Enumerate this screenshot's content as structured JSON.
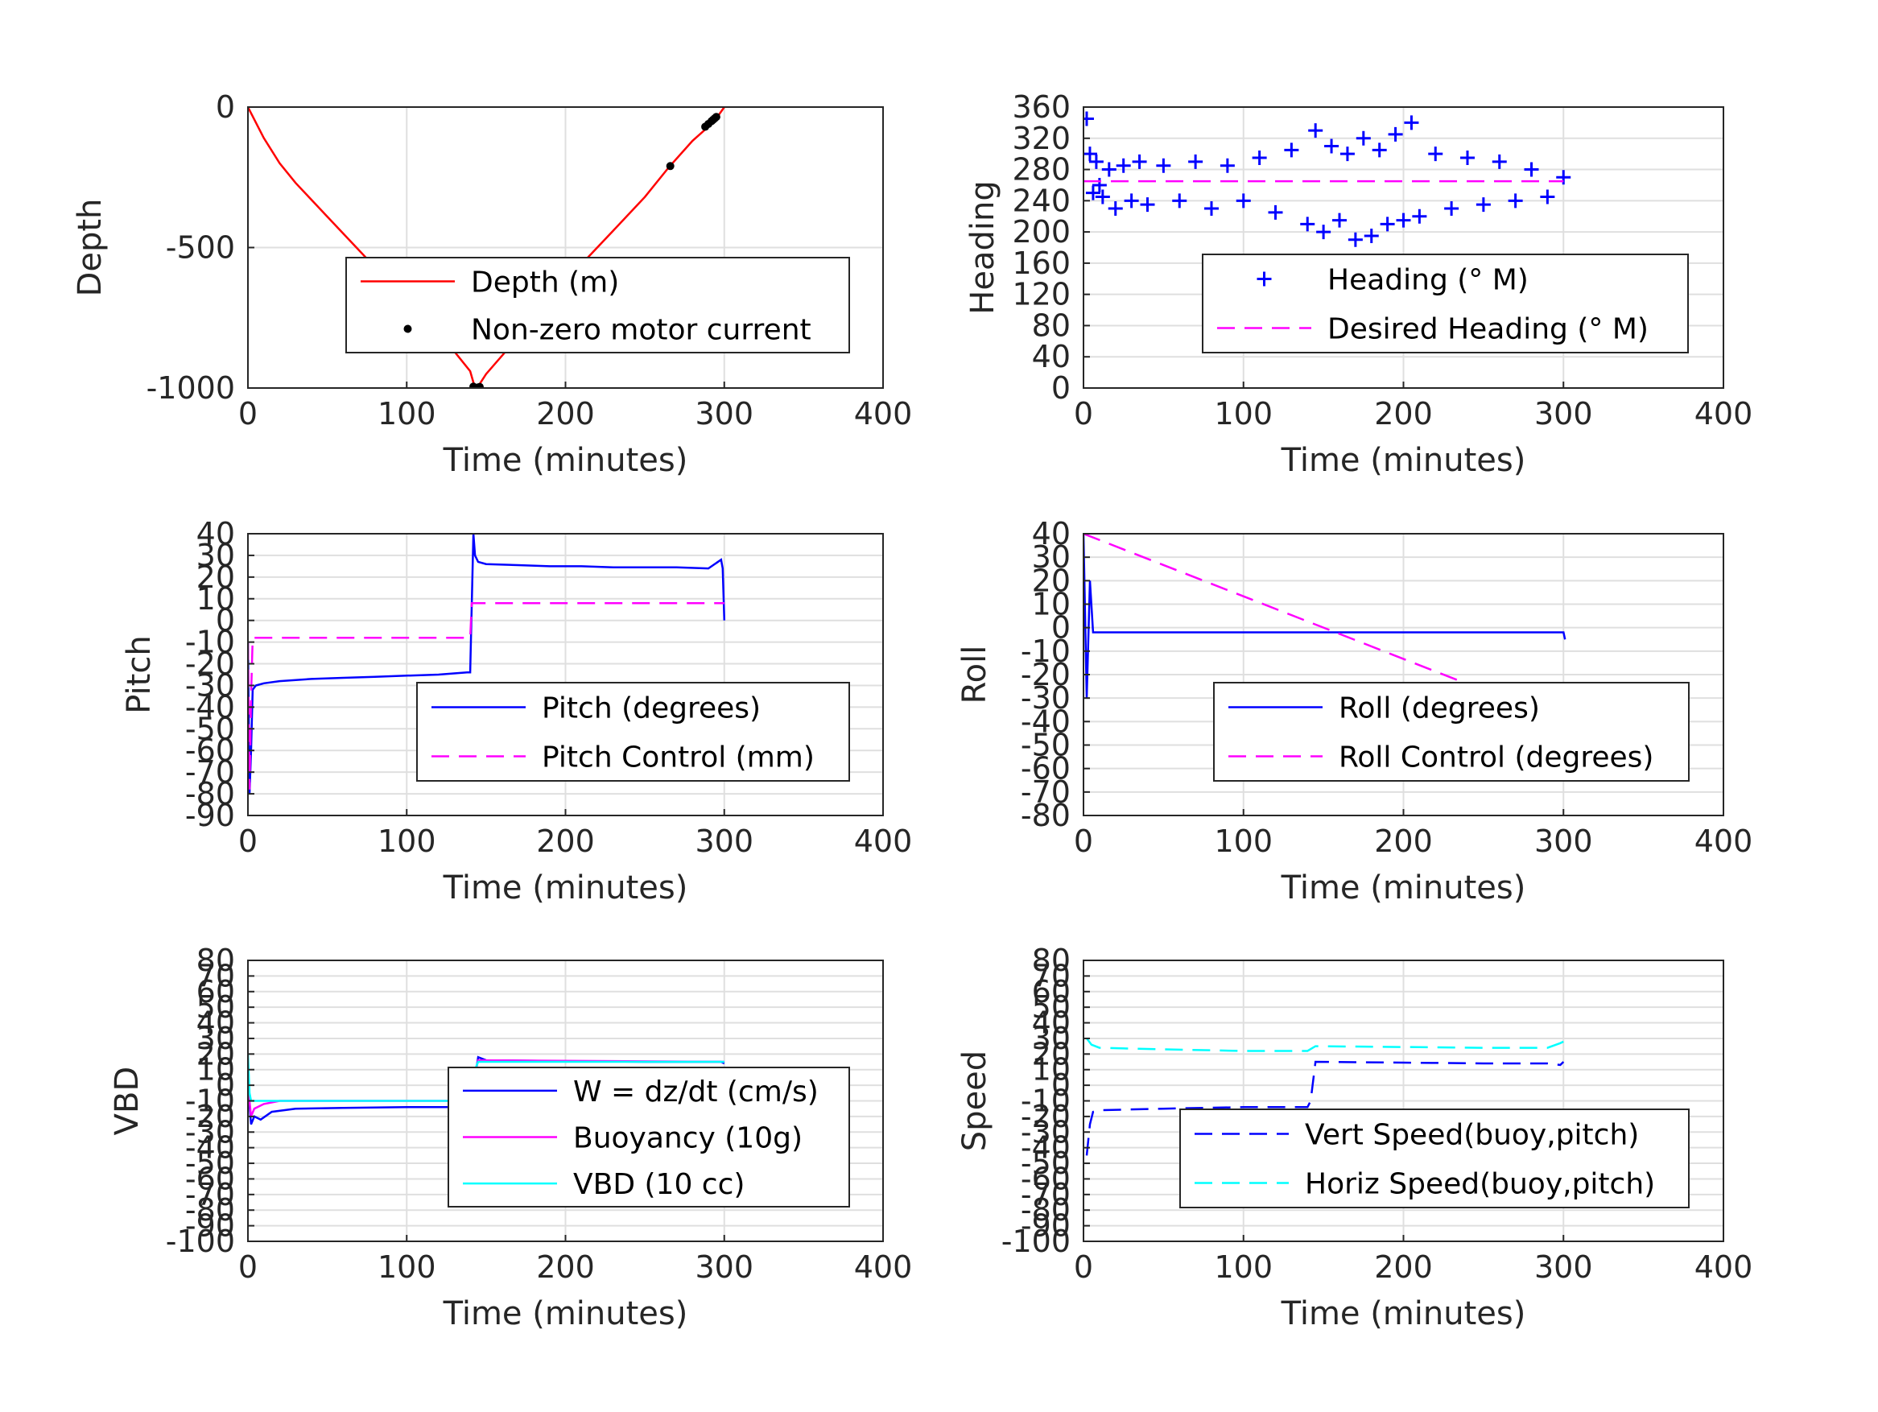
{
  "figure": {
    "background": "#ffffff"
  },
  "chart_data": [
    {
      "id": "depth",
      "type": "line",
      "xlabel": "Time (minutes)",
      "ylabel": "Depth",
      "xlim": [
        0,
        400
      ],
      "ylim": [
        -1000,
        0
      ],
      "xticks": [
        0,
        100,
        200,
        300,
        400
      ],
      "yticks": [
        -1000,
        -500,
        0
      ],
      "legend_position": "center",
      "series": [
        {
          "name": "Depth (m)",
          "color": "#ff0000",
          "style": "solid",
          "marker": "none",
          "x": [
            0,
            10,
            20,
            30,
            50,
            70,
            90,
            110,
            130,
            140,
            143,
            146,
            150,
            170,
            190,
            210,
            230,
            250,
            265,
            280,
            290,
            295,
            300
          ],
          "y": [
            0,
            -110,
            -200,
            -270,
            -390,
            -510,
            -630,
            -750,
            -870,
            -940,
            -1000,
            -985,
            -950,
            -820,
            -690,
            -560,
            -440,
            -320,
            -215,
            -120,
            -70,
            -40,
            0
          ]
        },
        {
          "name": "Non-zero motor current",
          "color": "#000000",
          "style": "none",
          "marker": "dot",
          "x": [
            142,
            144,
            145,
            146,
            266,
            288,
            290,
            292,
            293,
            294,
            295
          ],
          "y": [
            -995,
            -1000,
            -998,
            -996,
            -210,
            -70,
            -60,
            -50,
            -45,
            -40,
            -35
          ]
        }
      ]
    },
    {
      "id": "heading",
      "type": "scatter",
      "xlabel": "Time (minutes)",
      "ylabel": "Heading",
      "xlim": [
        0,
        400
      ],
      "ylim": [
        0,
        360
      ],
      "xticks": [
        0,
        100,
        200,
        300,
        400
      ],
      "yticks": [
        0,
        40,
        80,
        120,
        160,
        200,
        240,
        280,
        320,
        360
      ],
      "legend_position": "center-right",
      "series": [
        {
          "name": "Heading (° M)",
          "color": "#0000ff",
          "style": "none",
          "marker": "plus",
          "x": [
            2,
            4,
            6,
            8,
            10,
            12,
            16,
            20,
            25,
            30,
            35,
            40,
            50,
            60,
            70,
            80,
            90,
            100,
            110,
            120,
            130,
            140,
            145,
            150,
            155,
            160,
            165,
            170,
            175,
            180,
            185,
            190,
            195,
            200,
            205,
            210,
            220,
            230,
            240,
            250,
            260,
            270,
            280,
            290,
            300
          ],
          "y": [
            345,
            300,
            250,
            290,
            260,
            245,
            280,
            230,
            285,
            240,
            290,
            235,
            285,
            240,
            290,
            230,
            285,
            240,
            295,
            225,
            305,
            210,
            330,
            200,
            310,
            215,
            300,
            190,
            320,
            195,
            305,
            210,
            325,
            215,
            340,
            220,
            300,
            230,
            295,
            235,
            290,
            240,
            280,
            245,
            270
          ]
        },
        {
          "name": "Desired Heading (° M)",
          "color": "#ff00ff",
          "style": "dashed",
          "marker": "none",
          "x": [
            0,
            300
          ],
          "y": [
            265,
            265
          ]
        }
      ]
    },
    {
      "id": "pitch",
      "type": "line",
      "xlabel": "Time (minutes)",
      "ylabel": "Pitch",
      "xlim": [
        0,
        400
      ],
      "ylim": [
        -90,
        40
      ],
      "xticks": [
        0,
        100,
        200,
        300,
        400
      ],
      "yticks": [
        -90,
        -80,
        -70,
        -60,
        -50,
        -40,
        -30,
        -20,
        -10,
        0,
        10,
        20,
        30,
        40
      ],
      "legend_position": "bottom-right",
      "series": [
        {
          "name": "Pitch (degrees)",
          "color": "#0000ff",
          "style": "solid",
          "marker": "none",
          "x": [
            0,
            1,
            2,
            3,
            5,
            10,
            20,
            40,
            60,
            80,
            100,
            120,
            138,
            140,
            142,
            143,
            145,
            150,
            170,
            190,
            210,
            230,
            250,
            270,
            290,
            298,
            299,
            300
          ],
          "y": [
            -10,
            -80,
            -60,
            -32,
            -30,
            -29,
            -28,
            -27,
            -26.5,
            -26,
            -25.5,
            -25,
            -24,
            -24,
            40,
            30,
            27,
            26,
            25.5,
            25,
            25,
            24.5,
            24.5,
            24.5,
            24,
            28,
            24,
            0
          ]
        },
        {
          "name": "Pitch Control (mm)",
          "color": "#ff00ff",
          "style": "dashed",
          "marker": "none",
          "x": [
            0,
            1,
            2,
            3,
            140,
            141,
            300
          ],
          "y": [
            -10,
            -78,
            -35,
            -8,
            -8,
            8,
            8
          ]
        }
      ]
    },
    {
      "id": "roll",
      "type": "line",
      "xlabel": "Time (minutes)",
      "ylabel": "Roll",
      "xlim": [
        0,
        400
      ],
      "ylim": [
        -80,
        40
      ],
      "xticks": [
        0,
        100,
        200,
        300,
        400
      ],
      "yticks": [
        -80,
        -70,
        -60,
        -50,
        -40,
        -30,
        -20,
        -10,
        0,
        10,
        20,
        30,
        40
      ],
      "legend_position": "bottom-right",
      "series": [
        {
          "name": "Roll (degrees)",
          "color": "#0000ff",
          "style": "solid",
          "marker": "none",
          "x": [
            0,
            2,
            4,
            6,
            10,
            20,
            300,
            301
          ],
          "y": [
            40,
            -30,
            20,
            -2,
            -2,
            -2,
            -2,
            -5
          ]
        },
        {
          "name": "Roll Control (degrees)",
          "color": "#ff00ff",
          "style": "dashed",
          "marker": "none",
          "x": [
            0,
            300
          ],
          "y": [
            40,
            -40
          ]
        }
      ]
    },
    {
      "id": "vbd",
      "type": "line",
      "xlabel": "Time (minutes)",
      "ylabel": "VBD",
      "xlim": [
        0,
        400
      ],
      "ylim": [
        -100,
        80
      ],
      "xticks": [
        0,
        100,
        200,
        300,
        400
      ],
      "yticks": [
        -100,
        -90,
        -80,
        -70,
        -60,
        -50,
        -40,
        -30,
        -20,
        -10,
        0,
        10,
        20,
        30,
        40,
        50,
        60,
        70,
        80
      ],
      "legend_position": "bottom-right",
      "series": [
        {
          "name": "W = dz/dt (cm/s)",
          "color": "#0000ff",
          "style": "solid",
          "marker": "none",
          "x": [
            0,
            2,
            4,
            8,
            15,
            30,
            60,
            100,
            138,
            140,
            143,
            145,
            150,
            200,
            250,
            290,
            298,
            300
          ],
          "y": [
            0,
            -25,
            -20,
            -22,
            -17,
            -15,
            -14.5,
            -14,
            -14,
            -12,
            5,
            18,
            16,
            15.5,
            15,
            15,
            15,
            14
          ]
        },
        {
          "name": "Buoyancy (10g)",
          "color": "#ff00ff",
          "style": "solid",
          "marker": "none",
          "x": [
            0,
            2,
            4,
            10,
            20,
            140,
            143,
            145,
            300
          ],
          "y": [
            0,
            -20,
            -15,
            -12,
            -10,
            -10,
            8,
            16,
            15
          ]
        },
        {
          "name": "VBD (10 cc)",
          "color": "#00ffff",
          "style": "solid",
          "marker": "none",
          "x": [
            0,
            1,
            2,
            5,
            140,
            143,
            145,
            300
          ],
          "y": [
            20,
            -5,
            -10,
            -10,
            -10,
            10,
            15,
            15
          ]
        }
      ]
    },
    {
      "id": "speed",
      "type": "line",
      "xlabel": "Time (minutes)",
      "ylabel": "Speed",
      "xlim": [
        0,
        400
      ],
      "ylim": [
        -100,
        80
      ],
      "xticks": [
        0,
        100,
        200,
        300,
        400
      ],
      "yticks": [
        -100,
        -90,
        -80,
        -70,
        -60,
        -50,
        -40,
        -30,
        -20,
        -10,
        0,
        10,
        20,
        30,
        40,
        50,
        60,
        70,
        80
      ],
      "legend_position": "bottom-right",
      "series": [
        {
          "name": "Vert Speed(buoy,pitch)",
          "color": "#0000ff",
          "style": "dashed",
          "marker": "none",
          "x": [
            2,
            4,
            6,
            10,
            50,
            100,
            140,
            142,
            145,
            200,
            250,
            290,
            298,
            300
          ],
          "y": [
            -45,
            -25,
            -17,
            -16,
            -15,
            -14,
            -14,
            -10,
            15,
            14.5,
            14,
            14,
            13,
            15
          ]
        },
        {
          "name": "Horiz Speed(buoy,pitch)",
          "color": "#00ffff",
          "style": "dashed",
          "marker": "none",
          "x": [
            2,
            5,
            10,
            50,
            100,
            140,
            145,
            200,
            250,
            290,
            298,
            300
          ],
          "y": [
            30,
            26,
            24,
            23,
            22,
            22,
            25,
            24.5,
            24,
            24,
            27,
            28
          ]
        }
      ]
    }
  ]
}
